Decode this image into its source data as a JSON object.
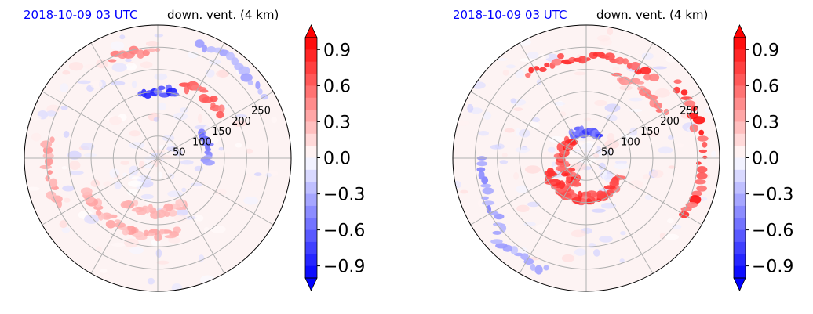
{
  "chart_data": [
    {
      "type": "heatmap",
      "projection": "polar",
      "title_left": "2018-10-09 03 UTC",
      "title_right": "down. vent. (4 km)",
      "title_left_color": "#0000ff",
      "radial_ticks": [
        "50",
        "100",
        "150",
        "200",
        "250"
      ],
      "rlim": [
        0,
        300
      ],
      "grid": true,
      "colormap": "bwr",
      "colorbar": {
        "ticks": [
          "0.9",
          "0.6",
          "0.3",
          "0.0",
          "−0.3",
          "−0.6",
          "−0.9"
        ],
        "vmin": -1.0,
        "vmax": 1.0,
        "extend": "both",
        "levels": 20
      },
      "features": [
        {
          "kind": "band",
          "r": 120,
          "theta_start": 150,
          "theta_end": 215,
          "value": 0.35
        },
        {
          "kind": "band",
          "r": 175,
          "theta_start": 165,
          "theta_end": 245,
          "value": 0.4
        },
        {
          "kind": "band",
          "r": 250,
          "theta_start": 245,
          "theta_end": 280,
          "value": 0.45
        },
        {
          "kind": "band",
          "r": 245,
          "theta_start": 335,
          "theta_end": 360,
          "value": 0.55
        },
        {
          "kind": "band",
          "r": 175,
          "theta_start": 20,
          "theta_end": 55,
          "value": 0.8
        },
        {
          "kind": "band",
          "r": 150,
          "theta_start": 345,
          "theta_end": 15,
          "value": -0.9
        },
        {
          "kind": "band",
          "r": 110,
          "theta_start": 60,
          "theta_end": 95,
          "value": -0.6
        },
        {
          "kind": "band",
          "r": 275,
          "theta_start": 20,
          "theta_end": 60,
          "value": -0.4
        }
      ]
    },
    {
      "type": "heatmap",
      "projection": "polar",
      "title_left": "2018-10-09 03 UTC",
      "title_right": "down. vent. (4 km)",
      "title_left_color": "#0000ff",
      "radial_ticks": [
        "50",
        "100",
        "150",
        "200",
        "250"
      ],
      "rlim": [
        0,
        300
      ],
      "grid": true,
      "colormap": "bwr",
      "colorbar": {
        "ticks": [
          "0.9",
          "0.6",
          "0.3",
          "0.0",
          "−0.3",
          "−0.6",
          "−0.9"
        ],
        "vmin": -1.0,
        "vmax": 1.0,
        "extend": "both",
        "levels": 20
      },
      "features": [
        {
          "kind": "band",
          "r": 55,
          "theta_start": 200,
          "theta_end": 320,
          "value": 0.9
        },
        {
          "kind": "band",
          "r": 90,
          "theta_start": 120,
          "theta_end": 250,
          "value": 0.85
        },
        {
          "kind": "band",
          "r": 60,
          "theta_start": 330,
          "theta_end": 30,
          "value": -0.8
        },
        {
          "kind": "band",
          "r": 230,
          "theta_start": 325,
          "theta_end": 40,
          "value": 0.9
        },
        {
          "kind": "band",
          "r": 260,
          "theta_start": 50,
          "theta_end": 120,
          "value": 0.95
        },
        {
          "kind": "band",
          "r": 200,
          "theta_start": 20,
          "theta_end": 60,
          "value": 0.6
        },
        {
          "kind": "band",
          "r": 240,
          "theta_start": 230,
          "theta_end": 270,
          "value": -0.5
        },
        {
          "kind": "band",
          "r": 270,
          "theta_start": 200,
          "theta_end": 230,
          "value": -0.4
        }
      ]
    }
  ]
}
